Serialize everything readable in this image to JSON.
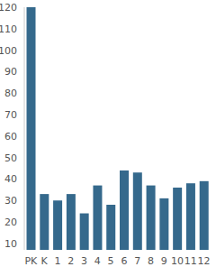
{
  "chart_data": {
    "type": "bar",
    "categories": [
      "PK",
      "K",
      "1",
      "2",
      "3",
      "4",
      "5",
      "6",
      "7",
      "8",
      "9",
      "10",
      "11",
      "12"
    ],
    "values": [
      120,
      33,
      30,
      33,
      24,
      37,
      28,
      44,
      43,
      37,
      31,
      36,
      38,
      39
    ],
    "color": "#35698c",
    "ylim": [
      7,
      120
    ],
    "yticks": [
      10,
      20,
      30,
      40,
      50,
      60,
      70,
      80,
      90,
      100,
      110,
      120
    ],
    "grid": false
  }
}
